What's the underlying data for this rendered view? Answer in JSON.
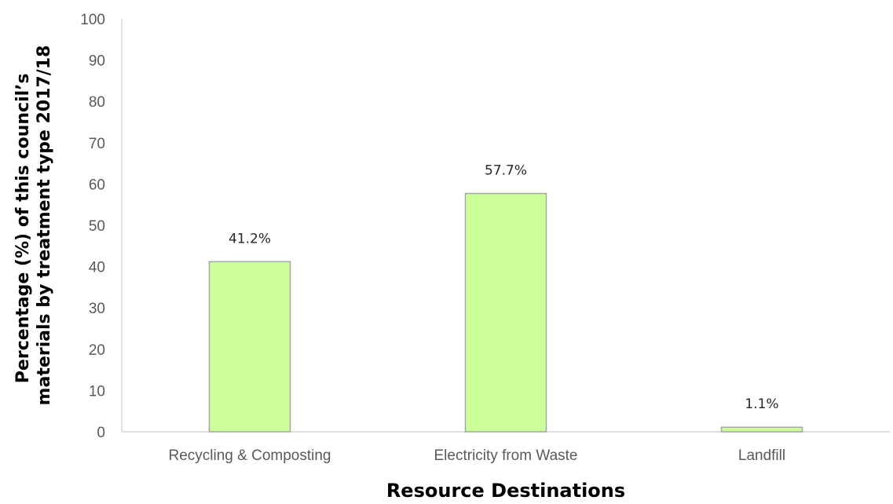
{
  "chart_data": {
    "type": "bar",
    "categories": [
      "Recycling & Composting",
      "Electricity from Waste",
      "Landfill"
    ],
    "values": [
      41.2,
      57.7,
      1.1
    ],
    "data_labels": [
      "41.2%",
      "57.7%",
      "1.1%"
    ],
    "xlabel": "Resource Destinations",
    "ylabel": [
      "Percentage (%) of this council’s",
      "materials by treatment type 2017/18"
    ],
    "ylim": [
      0,
      100
    ],
    "yticks": [
      0,
      10,
      20,
      30,
      40,
      50,
      60,
      70,
      80,
      90,
      100
    ],
    "grid": false,
    "legend": "none",
    "bar_color": "#ccff99",
    "bar_edge_color": "#a6a6a6"
  }
}
